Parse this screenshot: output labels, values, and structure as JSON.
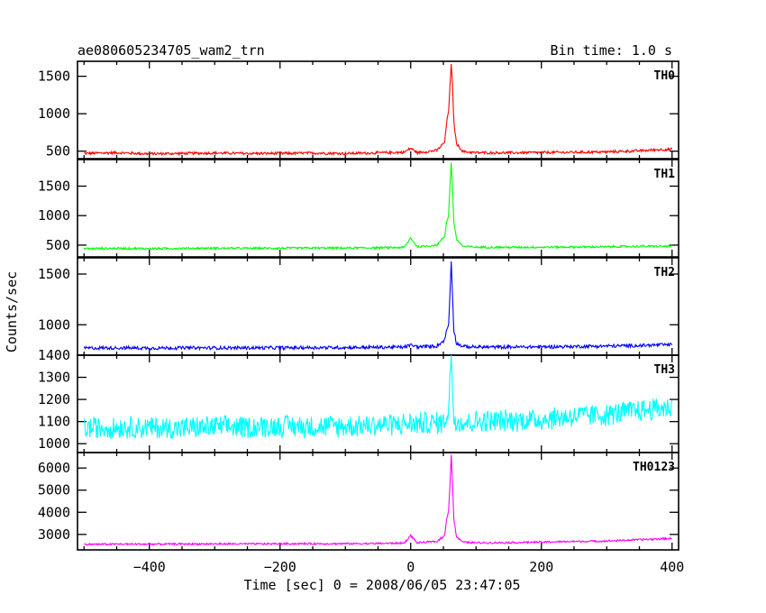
{
  "chart_data": {
    "type": "line",
    "title": "ae080605234705_wam2_trn",
    "subtitle": "Bin time: 1.0 s",
    "xlabel": "Time [sec] 0 = 2008/06/05 23:47:05",
    "ylabel": "Counts/sec",
    "xlim": [
      -510,
      410
    ],
    "xticks": [
      -400,
      -200,
      0,
      200,
      400
    ],
    "xtick_labels": [
      "−400",
      "−200",
      "0",
      "200",
      "400"
    ],
    "grid": false,
    "panels": [
      {
        "name": "TH0",
        "color": "#ff0000",
        "ylim": [
          400,
          1700
        ],
        "yticks": [
          500,
          1000,
          1500
        ],
        "yticklabels": [
          "500",
          "1000",
          "1500"
        ],
        "points": [
          [
            -500,
            470
          ],
          [
            -450,
            480
          ],
          [
            -400,
            465
          ],
          [
            -350,
            470
          ],
          [
            -300,
            475
          ],
          [
            -250,
            470
          ],
          [
            -200,
            470
          ],
          [
            -150,
            475
          ],
          [
            -100,
            470
          ],
          [
            -50,
            478
          ],
          [
            -10,
            485
          ],
          [
            0,
            540
          ],
          [
            10,
            480
          ],
          [
            40,
            510
          ],
          [
            52,
            620
          ],
          [
            55,
            880
          ],
          [
            58,
            1050
          ],
          [
            60,
            1350
          ],
          [
            62,
            1650
          ],
          [
            64,
            1380
          ],
          [
            66,
            900
          ],
          [
            70,
            600
          ],
          [
            80,
            495
          ],
          [
            100,
            480
          ],
          [
            150,
            478
          ],
          [
            200,
            482
          ],
          [
            250,
            485
          ],
          [
            300,
            490
          ],
          [
            350,
            505
          ],
          [
            380,
            520
          ],
          [
            400,
            525
          ]
        ]
      },
      {
        "name": "TH1",
        "color": "#00ff00",
        "ylim": [
          300,
          1950
        ],
        "yticks": [
          500,
          1000,
          1500
        ],
        "yticklabels": [
          "500",
          "1000",
          "1500"
        ],
        "points": [
          [
            -500,
            440
          ],
          [
            -450,
            445
          ],
          [
            -400,
            440
          ],
          [
            -350,
            445
          ],
          [
            -300,
            448
          ],
          [
            -250,
            445
          ],
          [
            -200,
            448
          ],
          [
            -150,
            450
          ],
          [
            -100,
            450
          ],
          [
            -50,
            455
          ],
          [
            -10,
            460
          ],
          [
            0,
            620
          ],
          [
            10,
            470
          ],
          [
            40,
            500
          ],
          [
            52,
            650
          ],
          [
            55,
            900
          ],
          [
            58,
            1000
          ],
          [
            60,
            1500
          ],
          [
            62,
            1900
          ],
          [
            64,
            1450
          ],
          [
            66,
            900
          ],
          [
            70,
            600
          ],
          [
            80,
            480
          ],
          [
            100,
            465
          ],
          [
            150,
            462
          ],
          [
            200,
            465
          ],
          [
            250,
            468
          ],
          [
            300,
            470
          ],
          [
            350,
            480
          ],
          [
            400,
            480
          ]
        ]
      },
      {
        "name": "TH2",
        "color": "#0000ff",
        "ylim": [
          700,
          1660
        ],
        "yticks": [
          1000,
          1500
        ],
        "yticklabels": [
          "1000",
          "1500"
        ],
        "points": [
          [
            -500,
            770
          ],
          [
            -450,
            772
          ],
          [
            -400,
            770
          ],
          [
            -350,
            772
          ],
          [
            -300,
            772
          ],
          [
            -250,
            772
          ],
          [
            -200,
            773
          ],
          [
            -150,
            775
          ],
          [
            -100,
            775
          ],
          [
            -50,
            778
          ],
          [
            -10,
            780
          ],
          [
            0,
            800
          ],
          [
            10,
            782
          ],
          [
            40,
            790
          ],
          [
            52,
            850
          ],
          [
            55,
            950
          ],
          [
            58,
            1000
          ],
          [
            60,
            1300
          ],
          [
            62,
            1620
          ],
          [
            64,
            1300
          ],
          [
            66,
            950
          ],
          [
            70,
            820
          ],
          [
            80,
            785
          ],
          [
            100,
            780
          ],
          [
            150,
            780
          ],
          [
            200,
            782
          ],
          [
            250,
            786
          ],
          [
            300,
            790
          ],
          [
            350,
            795
          ],
          [
            400,
            805
          ]
        ]
      },
      {
        "name": "TH3",
        "color": "#00ffff",
        "ylim": [
          960,
          1400
        ],
        "yticks": [
          1000,
          1100,
          1200,
          1300,
          1400
        ],
        "yticklabels": [
          "1000",
          "1100",
          "1200",
          "1300",
          "1400"
        ],
        "points": [
          [
            -500,
            1070
          ],
          [
            -450,
            1075
          ],
          [
            -400,
            1072
          ],
          [
            -350,
            1070
          ],
          [
            -300,
            1075
          ],
          [
            -250,
            1075
          ],
          [
            -200,
            1080
          ],
          [
            -150,
            1078
          ],
          [
            -100,
            1080
          ],
          [
            -50,
            1085
          ],
          [
            0,
            1090
          ],
          [
            50,
            1095
          ],
          [
            58,
            1150
          ],
          [
            60,
            1300
          ],
          [
            62,
            1400
          ],
          [
            64,
            1250
          ],
          [
            66,
            1110
          ],
          [
            80,
            1095
          ],
          [
            100,
            1100
          ],
          [
            150,
            1105
          ],
          [
            200,
            1110
          ],
          [
            250,
            1125
          ],
          [
            300,
            1130
          ],
          [
            350,
            1150
          ],
          [
            400,
            1165
          ]
        ]
      },
      {
        "name": "TH0123",
        "color": "#ff00ff",
        "ylim": [
          2300,
          6700
        ],
        "yticks": [
          3000,
          4000,
          5000,
          6000
        ],
        "yticklabels": [
          "3000",
          "4000",
          "5000",
          "6000"
        ],
        "points": [
          [
            -500,
            2550
          ],
          [
            -450,
            2560
          ],
          [
            -400,
            2560
          ],
          [
            -350,
            2565
          ],
          [
            -300,
            2570
          ],
          [
            -250,
            2570
          ],
          [
            -200,
            2575
          ],
          [
            -150,
            2580
          ],
          [
            -100,
            2580
          ],
          [
            -50,
            2590
          ],
          [
            -10,
            2610
          ],
          [
            0,
            2950
          ],
          [
            10,
            2620
          ],
          [
            40,
            2680
          ],
          [
            52,
            2950
          ],
          [
            55,
            3700
          ],
          [
            58,
            4100
          ],
          [
            60,
            5200
          ],
          [
            62,
            6600
          ],
          [
            64,
            5300
          ],
          [
            66,
            3700
          ],
          [
            70,
            2900
          ],
          [
            80,
            2650
          ],
          [
            100,
            2620
          ],
          [
            150,
            2630
          ],
          [
            200,
            2650
          ],
          [
            250,
            2680
          ],
          [
            300,
            2700
          ],
          [
            350,
            2760
          ],
          [
            400,
            2820
          ]
        ]
      }
    ]
  }
}
